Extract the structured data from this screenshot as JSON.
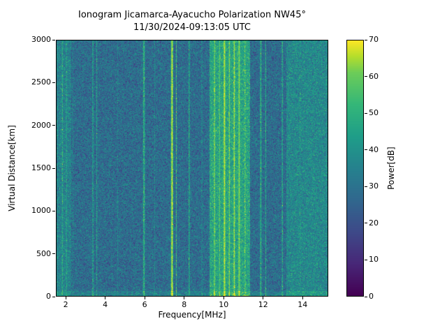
{
  "chart_data": {
    "type": "heatmap",
    "title": "Ionogram Jicamarca-Ayacucho Polarization NW45°",
    "subtitle": "11/30/2024-09:13:05 UTC",
    "xlabel": "Frequency[MHz]",
    "ylabel": "Virtual Distance[km]",
    "xlim": [
      1.5,
      15.3
    ],
    "ylim": [
      0,
      3000
    ],
    "xticks": [
      2,
      4,
      6,
      8,
      10,
      12,
      14
    ],
    "yticks": [
      0,
      500,
      1000,
      1500,
      2000,
      2500,
      3000
    ],
    "colormap": "viridis",
    "colorbar": {
      "label": "Power[dB]",
      "min": 0,
      "max": 70,
      "ticks": [
        0,
        10,
        20,
        30,
        40,
        50,
        60,
        70
      ]
    },
    "noise_floor_db": 28,
    "noise_std_db": 7,
    "regions": [
      {
        "from": 1.5,
        "to": 2.25,
        "power": 35
      },
      {
        "from": 2.5,
        "to": 3.2,
        "power": 25
      },
      {
        "from": 4.85,
        "to": 5.7,
        "power": 26
      },
      {
        "from": 9.3,
        "to": 11.35,
        "power": 46
      },
      {
        "from": 13.2,
        "to": 15.3,
        "power": 37
      }
    ],
    "bands": [
      {
        "center": 1.8,
        "width": 0.1,
        "power": 48
      },
      {
        "center": 2.0,
        "width": 0.08,
        "power": 45
      },
      {
        "center": 2.35,
        "width": 0.05,
        "power": 40
      },
      {
        "center": 3.35,
        "width": 0.07,
        "power": 46
      },
      {
        "center": 3.55,
        "width": 0.07,
        "power": 44
      },
      {
        "center": 4.6,
        "width": 0.06,
        "power": 38
      },
      {
        "center": 5.95,
        "width": 0.12,
        "power": 50
      },
      {
        "center": 6.5,
        "width": 0.05,
        "power": 36
      },
      {
        "center": 7.38,
        "width": 0.12,
        "power": 68
      },
      {
        "center": 7.6,
        "width": 0.06,
        "power": 52
      },
      {
        "center": 8.25,
        "width": 0.09,
        "power": 46
      },
      {
        "center": 8.9,
        "width": 0.06,
        "power": 40
      },
      {
        "center": 9.55,
        "width": 0.12,
        "power": 60
      },
      {
        "center": 9.8,
        "width": 0.1,
        "power": 58
      },
      {
        "center": 10.05,
        "width": 0.15,
        "power": 66
      },
      {
        "center": 10.3,
        "width": 0.1,
        "power": 62
      },
      {
        "center": 10.55,
        "width": 0.12,
        "power": 64
      },
      {
        "center": 10.8,
        "width": 0.15,
        "power": 62
      },
      {
        "center": 11.1,
        "width": 0.1,
        "power": 57
      },
      {
        "center": 11.9,
        "width": 0.09,
        "power": 50
      },
      {
        "center": 12.15,
        "width": 0.07,
        "power": 47
      },
      {
        "center": 13.0,
        "width": 0.09,
        "power": 46
      },
      {
        "center": 13.9,
        "width": 0.06,
        "power": 42
      },
      {
        "center": 14.6,
        "width": 0.05,
        "power": 40
      }
    ],
    "bottom_boost_db": 6,
    "bottom_boost_km": 60
  }
}
